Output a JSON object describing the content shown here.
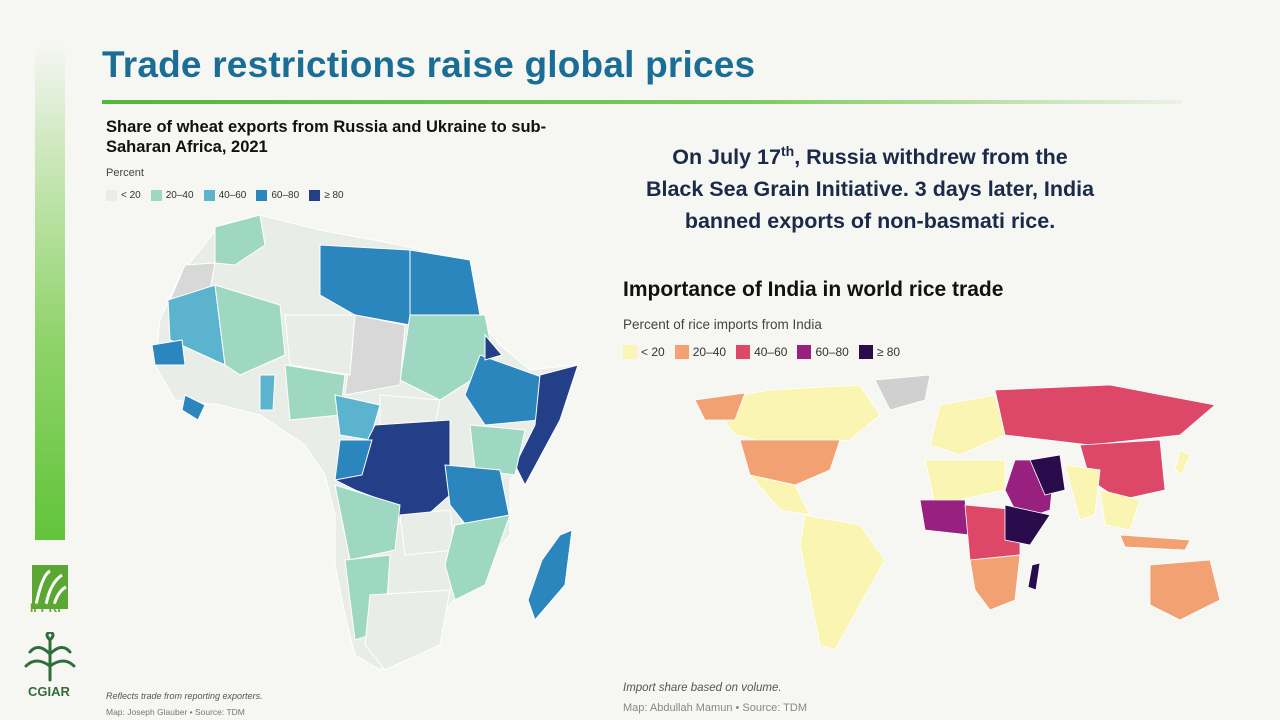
{
  "slide": {
    "title": "Trade restrictions raise global prices",
    "headline": {
      "line1_before": "On July 17",
      "line1_sup": "th",
      "line1_after": ", Russia withdrew from the",
      "line2": "Black Sea Grain Initiative. 3 days later, India",
      "line3": "banned exports of non-basmati rice."
    }
  },
  "wheat_map": {
    "title": "Share of wheat exports from Russia and Ukraine to sub-Saharan Africa, 2021",
    "subtitle": "Percent",
    "legend": [
      {
        "label": "< 20",
        "color": "#e9ede8"
      },
      {
        "label": "20–40",
        "color": "#9fd8c2"
      },
      {
        "label": "40–60",
        "color": "#5bb3cd"
      },
      {
        "label": "60–80",
        "color": "#2a86bd"
      },
      {
        "label": "≥ 80",
        "color": "#233f87"
      }
    ],
    "note": "Reflects trade from reporting exporters.",
    "credit": "Map: Joseph Glauber • Source: TDM"
  },
  "rice_map": {
    "title": "Importance of India in world rice trade",
    "subtitle": "Percent of rice imports from India",
    "legend": [
      {
        "label": "< 20",
        "color": "#fbf5b3"
      },
      {
        "label": "20–40",
        "color": "#f2a272"
      },
      {
        "label": "40–60",
        "color": "#dd4768"
      },
      {
        "label": "60–80",
        "color": "#98207e"
      },
      {
        "label": "≥ 80",
        "color": "#2a0b4b"
      }
    ],
    "note": "Import share based on volume.",
    "credit": "Map: Abdullah Mamun • Source: TDM"
  },
  "logos": {
    "ifpri": "IFPRI",
    "cgiar": "CGIAR"
  }
}
